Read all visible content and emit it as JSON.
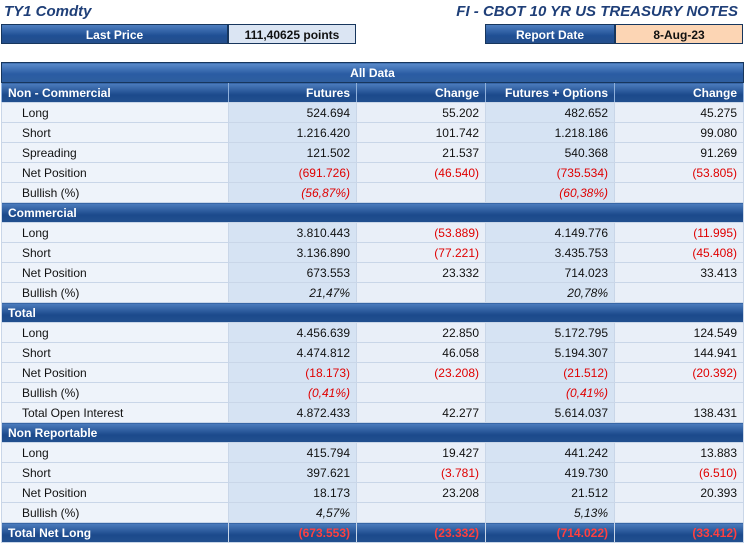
{
  "header": {
    "ticker": "TY1 Comdty",
    "title": "FI - CBOT 10 YR US TREASURY NOTES",
    "last_price_label": "Last Price",
    "last_price_value": "111,40625 points",
    "report_date_label": "Report Date",
    "report_date_value": "8-Aug-23"
  },
  "table": {
    "banner": "All Data",
    "columns": [
      "Non - Commercial",
      "Futures",
      "Change",
      "Futures + Options",
      "Change"
    ],
    "non_commercial": [
      [
        "Long",
        "524.694",
        "55.202",
        "482.652",
        "45.275"
      ],
      [
        "Short",
        "1.216.420",
        "101.742",
        "1.218.186",
        "99.080"
      ],
      [
        "Spreading",
        "121.502",
        "21.537",
        "540.368",
        "91.269"
      ],
      [
        "Net Position",
        "(691.726)",
        "(46.540)",
        "(735.534)",
        "(53.805)"
      ],
      [
        "Bullish (%)",
        "(56,87%)",
        "",
        "(60,38%)",
        ""
      ]
    ],
    "commercial_title": "Commercial",
    "commercial": [
      [
        "Long",
        "3.810.443",
        "(53.889)",
        "4.149.776",
        "(11.995)"
      ],
      [
        "Short",
        "3.136.890",
        "(77.221)",
        "3.435.753",
        "(45.408)"
      ],
      [
        "Net Position",
        "673.553",
        "23.332",
        "714.023",
        "33.413"
      ],
      [
        "Bullish (%)",
        "21,47%",
        "",
        "20,78%",
        ""
      ]
    ],
    "total_title": "Total",
    "total": [
      [
        "Long",
        "4.456.639",
        "22.850",
        "5.172.795",
        "124.549"
      ],
      [
        "Short",
        "4.474.812",
        "46.058",
        "5.194.307",
        "144.941"
      ],
      [
        "Net Position",
        "(18.173)",
        "(23.208)",
        "(21.512)",
        "(20.392)"
      ],
      [
        "Bullish (%)",
        "(0,41%)",
        "",
        "(0,41%)",
        ""
      ],
      [
        "Total Open Interest",
        "4.872.433",
        "42.277",
        "5.614.037",
        "138.431"
      ]
    ],
    "non_reportable_title": "Non Reportable",
    "non_reportable": [
      [
        "Long",
        "415.794",
        "19.427",
        "441.242",
        "13.883"
      ],
      [
        "Short",
        "397.621",
        "(3.781)",
        "419.730",
        "(6.510)"
      ],
      [
        "Net Position",
        "18.173",
        "23.208",
        "21.512",
        "20.393"
      ],
      [
        "Bullish (%)",
        "4,57%",
        "",
        "5,13%",
        ""
      ]
    ],
    "total_net_long": [
      "Total Net Long",
      "(673.553)",
      "(23.332)",
      "(714.022)",
      "(33.412)"
    ]
  }
}
